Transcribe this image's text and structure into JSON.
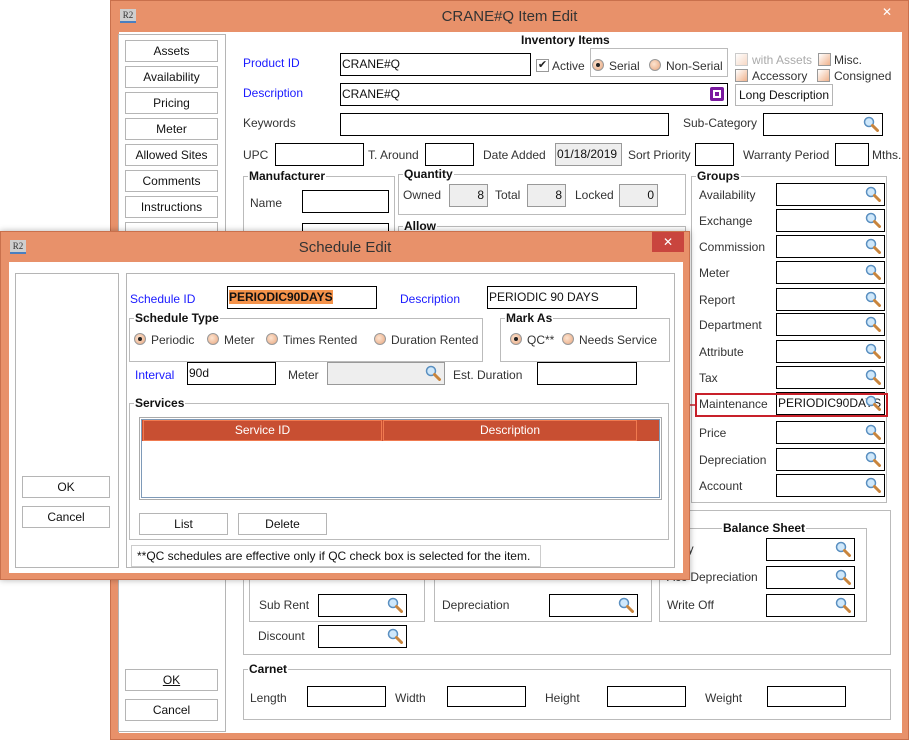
{
  "main": {
    "title": "CRANE#Q Item Edit",
    "app_icon": "R2",
    "close": "✕",
    "nav": [
      "Assets",
      "Availability",
      "Pricing",
      "Meter",
      "Allowed Sites",
      "Comments",
      "Instructions"
    ],
    "ok": "OK",
    "cancel": "Cancel",
    "section": "Inventory Items",
    "product_id_label": "Product ID",
    "product_id": "CRANE#Q",
    "active": "Active",
    "active_checked": true,
    "serial": "Serial",
    "non_serial": "Non-Serial",
    "serial_selected": "Serial",
    "with_assets": "with Assets",
    "misc": "Misc.",
    "accessory": "Accessory",
    "consigned": "Consigned",
    "description_label": "Description",
    "description": "CRANE#Q",
    "long_description": "Long Description",
    "keywords_label": "Keywords",
    "keywords": "",
    "subcategory_label": "Sub-Category",
    "upc_label": "UPC",
    "t_around_label": "T. Around",
    "date_added_label": "Date Added",
    "date_added": "01/18/2019",
    "sort_priority_label": "Sort Priority",
    "warranty_label": "Warranty Period",
    "mths": "Mths.",
    "manufacturer": "Manufacturer",
    "name_label": "Name",
    "quantity": "Quantity",
    "owned_label": "Owned",
    "owned": "8",
    "total_label": "Total",
    "total": "8",
    "locked_label": "Locked",
    "locked": "0",
    "allow": "Allow",
    "groups_title": "Groups",
    "groups": [
      {
        "label": "Availability",
        "value": ""
      },
      {
        "label": "Exchange",
        "value": ""
      },
      {
        "label": "Commission",
        "value": ""
      },
      {
        "label": "Meter",
        "value": ""
      },
      {
        "label": "Report",
        "value": ""
      },
      {
        "label": "Department",
        "value": ""
      },
      {
        "label": "Attribute",
        "value": ""
      },
      {
        "label": "Tax",
        "value": ""
      },
      {
        "label": "Maintenance",
        "value": "PERIODIC90DAYS"
      },
      {
        "label": "Price",
        "value": ""
      },
      {
        "label": "Depreciation",
        "value": ""
      },
      {
        "label": "Account",
        "value": ""
      }
    ],
    "balance_sheet": "Balance Sheet",
    "bs_rows": [
      "ntory",
      "Acc Depreciation",
      "Write Off"
    ],
    "sub_rent": "Sub Rent",
    "discount": "Discount",
    "depreciation": "Depreciation",
    "carnet": "Carnet",
    "length": "Length",
    "width": "Width",
    "height": "Height",
    "weight": "Weight"
  },
  "dialog": {
    "title": "Schedule Edit",
    "close": "✕",
    "ok": "OK",
    "cancel": "Cancel",
    "schedule_id_label": "Schedule ID",
    "schedule_id": "PERIODIC90DAYS",
    "description_label": "Description",
    "description": "PERIODIC 90 DAYS",
    "schedule_type": "Schedule Type",
    "types": [
      "Periodic",
      "Meter",
      "Times Rented",
      "Duration Rented"
    ],
    "type_selected": "Periodic",
    "mark_as": "Mark As",
    "marks": [
      "QC**",
      "Needs Service"
    ],
    "mark_selected": "QC**",
    "interval_label": "Interval",
    "interval": "90d",
    "meter_label": "Meter",
    "est_duration_label": "Est.  Duration",
    "services": "Services",
    "columns": [
      "Service ID",
      "Description"
    ],
    "list": "List",
    "delete": "Delete",
    "note": "**QC schedules are effective only if QC check box is selected for the item."
  },
  "colors": {
    "title_bar": "#E8916A",
    "table_header": "#C84F32",
    "highlight": "#C8202A",
    "selection": "#F5934A"
  }
}
